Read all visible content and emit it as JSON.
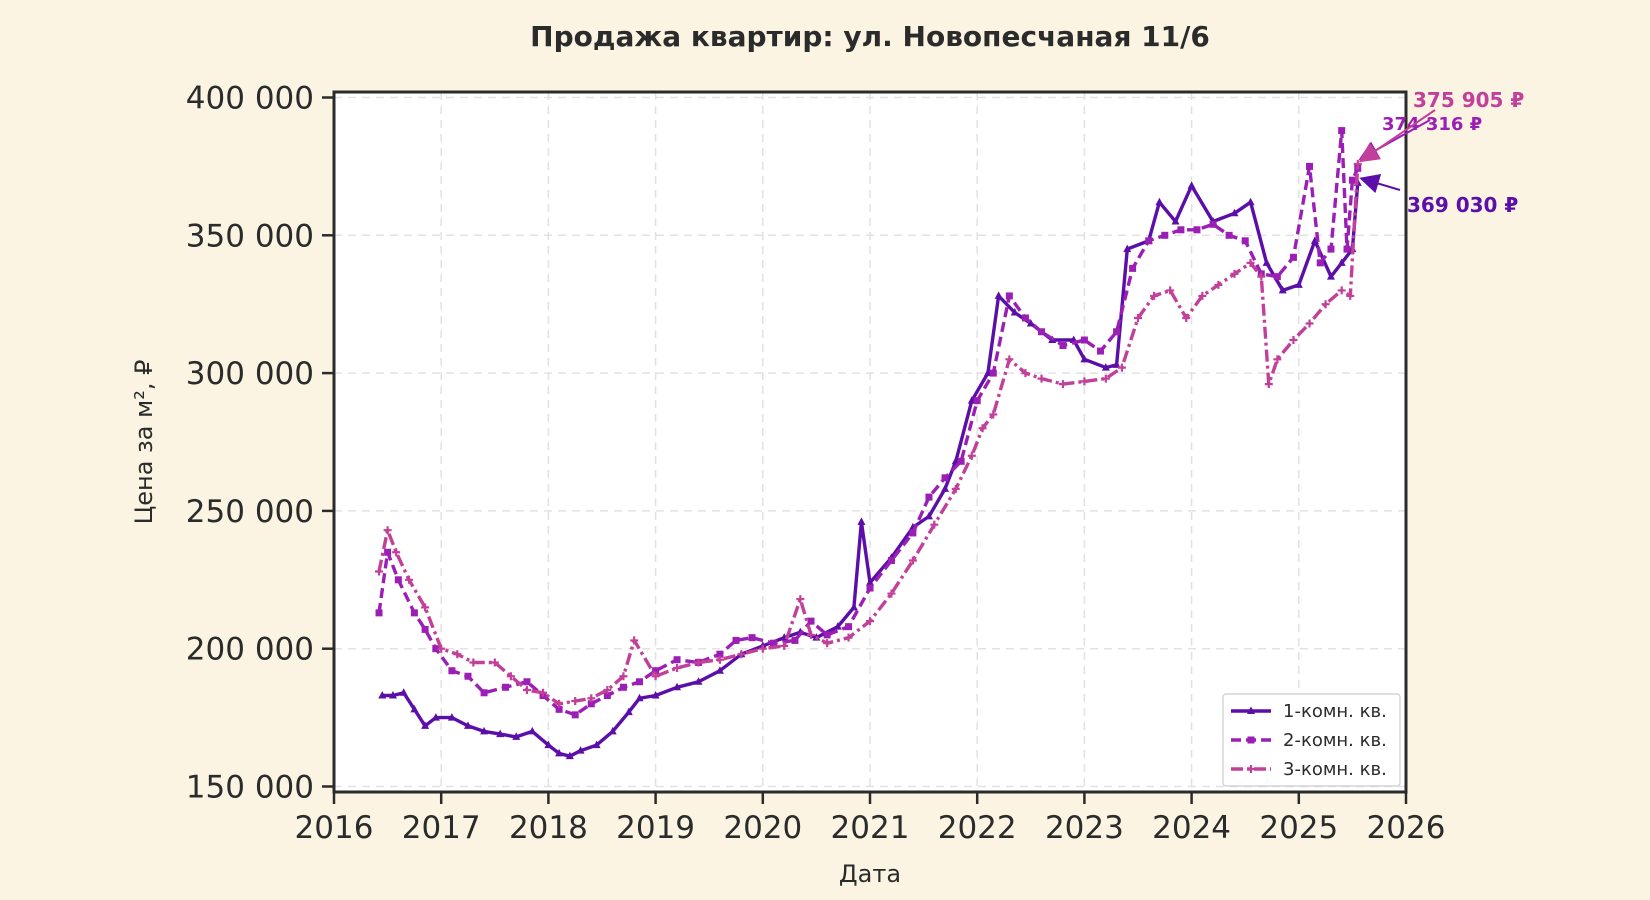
{
  "chart_data": {
    "type": "line",
    "title": "Продажа квартир: ул. Новопесчаная 11/6",
    "xlabel": "Дата",
    "ylabel": "Цена за м², ₽",
    "xlim": [
      2016.0,
      2026.0
    ],
    "ylim": [
      148000,
      402000
    ],
    "x_ticks": [
      2016,
      2017,
      2018,
      2019,
      2020,
      2021,
      2022,
      2023,
      2024,
      2025,
      2026
    ],
    "x_tick_labels": [
      "2016",
      "2017",
      "2018",
      "2019",
      "2020",
      "2021",
      "2022",
      "2023",
      "2024",
      "2025",
      "2026"
    ],
    "y_ticks": [
      150000,
      200000,
      250000,
      300000,
      350000,
      400000
    ],
    "y_tick_labels": [
      "150 000",
      "200 000",
      "250 000",
      "300 000",
      "350 000",
      "400 000"
    ],
    "grid": true,
    "legend_position": "bottom-right",
    "series": [
      {
        "name": "1-комн. кв.",
        "color": "#5b0fa8",
        "marker": "triangle",
        "dash": "solid",
        "end_label": "369 030 ₽",
        "x": [
          2016.45,
          2016.55,
          2016.65,
          2016.75,
          2016.85,
          2016.95,
          2017.1,
          2017.25,
          2017.4,
          2017.55,
          2017.7,
          2017.85,
          2018.0,
          2018.1,
          2018.2,
          2018.3,
          2018.45,
          2018.6,
          2018.75,
          2018.85,
          2019.0,
          2019.2,
          2019.4,
          2019.6,
          2019.8,
          2020.0,
          2020.2,
          2020.35,
          2020.5,
          2020.7,
          2020.85,
          2020.92,
          2021.0,
          2021.2,
          2021.4,
          2021.55,
          2021.7,
          2021.8,
          2021.95,
          2022.1,
          2022.2,
          2022.35,
          2022.5,
          2022.7,
          2022.9,
          2023.0,
          2023.2,
          2023.3,
          2023.4,
          2023.6,
          2023.7,
          2023.85,
          2024.0,
          2024.2,
          2024.4,
          2024.55,
          2024.7,
          2024.85,
          2025.0,
          2025.15,
          2025.3,
          2025.4,
          2025.5,
          2025.55
        ],
        "y": [
          183000,
          183000,
          184000,
          178000,
          172000,
          175000,
          175000,
          172000,
          170000,
          169000,
          168000,
          170000,
          165000,
          162000,
          161000,
          163000,
          165000,
          170000,
          177000,
          182000,
          183000,
          186000,
          188000,
          192000,
          198000,
          201000,
          204000,
          206000,
          204000,
          208000,
          215000,
          246000,
          224000,
          233000,
          244000,
          248000,
          258000,
          268000,
          290000,
          300000,
          328000,
          322000,
          318000,
          312000,
          312000,
          305000,
          302000,
          303000,
          345000,
          348000,
          362000,
          355000,
          368000,
          355000,
          358000,
          362000,
          340000,
          330000,
          332000,
          348000,
          335000,
          340000,
          345000,
          369030
        ]
      },
      {
        "name": "2-комн. кв.",
        "color": "#9b1fb5",
        "marker": "square",
        "dash": "dashed",
        "end_label": "374 316 ₽",
        "x": [
          2016.42,
          2016.5,
          2016.6,
          2016.75,
          2016.85,
          2016.95,
          2017.1,
          2017.25,
          2017.4,
          2017.6,
          2017.8,
          2017.95,
          2018.1,
          2018.25,
          2018.4,
          2018.55,
          2018.7,
          2018.85,
          2019.0,
          2019.2,
          2019.4,
          2019.6,
          2019.75,
          2019.9,
          2020.1,
          2020.3,
          2020.45,
          2020.6,
          2020.8,
          2021.0,
          2021.2,
          2021.4,
          2021.55,
          2021.7,
          2021.85,
          2022.0,
          2022.15,
          2022.3,
          2022.45,
          2022.6,
          2022.8,
          2023.0,
          2023.15,
          2023.3,
          2023.45,
          2023.6,
          2023.75,
          2023.9,
          2024.05,
          2024.2,
          2024.35,
          2024.5,
          2024.65,
          2024.8,
          2024.95,
          2025.1,
          2025.2,
          2025.3,
          2025.4,
          2025.45,
          2025.5,
          2025.55
        ],
        "y": [
          213000,
          235000,
          225000,
          213000,
          207000,
          200000,
          192000,
          190000,
          184000,
          186000,
          188000,
          183000,
          178000,
          176000,
          180000,
          183000,
          186000,
          188000,
          192000,
          196000,
          195000,
          198000,
          203000,
          204000,
          202000,
          203000,
          210000,
          205000,
          208000,
          222000,
          232000,
          242000,
          255000,
          262000,
          268000,
          290000,
          300000,
          328000,
          320000,
          315000,
          310000,
          312000,
          308000,
          315000,
          338000,
          348000,
          350000,
          352000,
          352000,
          354000,
          350000,
          348000,
          336000,
          335000,
          342000,
          375000,
          340000,
          345000,
          388000,
          345000,
          370000,
          374316
        ]
      },
      {
        "name": "3-комн. кв.",
        "color": "#c2409a",
        "marker": "plus",
        "dash": "dashdot",
        "end_label": "375 905 ₽",
        "x": [
          2016.42,
          2016.5,
          2016.58,
          2016.7,
          2016.85,
          2017.0,
          2017.15,
          2017.3,
          2017.5,
          2017.65,
          2017.8,
          2017.95,
          2018.1,
          2018.25,
          2018.4,
          2018.55,
          2018.7,
          2018.8,
          2019.0,
          2019.2,
          2019.4,
          2019.6,
          2019.8,
          2020.0,
          2020.2,
          2020.35,
          2020.45,
          2020.6,
          2020.8,
          2021.0,
          2021.2,
          2021.4,
          2021.6,
          2021.8,
          2021.95,
          2022.05,
          2022.15,
          2022.3,
          2022.45,
          2022.6,
          2022.8,
          2023.0,
          2023.2,
          2023.35,
          2023.5,
          2023.65,
          2023.8,
          2023.95,
          2024.1,
          2024.25,
          2024.4,
          2024.55,
          2024.65,
          2024.72,
          2024.8,
          2024.95,
          2025.1,
          2025.25,
          2025.4,
          2025.48,
          2025.55
        ],
        "y": [
          228000,
          243000,
          235000,
          225000,
          215000,
          200000,
          198000,
          195000,
          195000,
          190000,
          185000,
          184000,
          180000,
          181000,
          182000,
          185000,
          190000,
          203000,
          190000,
          193000,
          195000,
          196000,
          198000,
          200000,
          201000,
          218000,
          205000,
          202000,
          204000,
          210000,
          220000,
          232000,
          245000,
          258000,
          270000,
          280000,
          285000,
          305000,
          300000,
          298000,
          296000,
          297000,
          298000,
          302000,
          320000,
          328000,
          330000,
          320000,
          328000,
          332000,
          336000,
          340000,
          335000,
          296000,
          305000,
          312000,
          318000,
          325000,
          330000,
          328000,
          375905
        ]
      }
    ]
  }
}
